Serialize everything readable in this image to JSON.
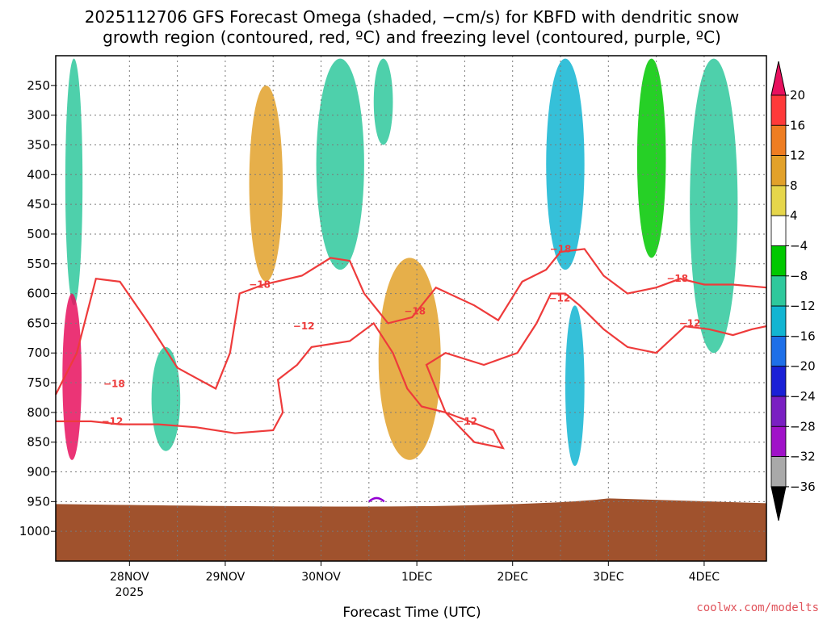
{
  "chart_data": {
    "type": "heatmap",
    "title_line1": "2025112706 GFS Forecast Omega (shaded, −cm/s) for KBFD with dendritic snow",
    "title_line2": "growth region (contoured, red, ºC) and freezing level (contoured, purple, ºC)",
    "xlabel": "Forecast Time (UTC)",
    "ylabel": "",
    "credit": "coolwx.com/modelts",
    "station": "KBFD",
    "model": "GFS",
    "init": "2025112706",
    "yaxis": {
      "ticks": [
        250,
        300,
        350,
        400,
        450,
        500,
        550,
        600,
        650,
        700,
        750,
        800,
        850,
        900,
        950,
        1000
      ],
      "ylim": [
        200,
        1050
      ],
      "units": "hPa"
    },
    "xaxis": {
      "xlim": [
        -0.77,
        6.65
      ],
      "ticks": [
        {
          "value": 0,
          "label": "28NOV",
          "sub": "2025"
        },
        {
          "value": 1,
          "label": "29NOV",
          "sub": ""
        },
        {
          "value": 2,
          "label": "30NOV",
          "sub": ""
        },
        {
          "value": 3,
          "label": "1DEC",
          "sub": ""
        },
        {
          "value": 4,
          "label": "2DEC",
          "sub": ""
        },
        {
          "value": 5,
          "label": "3DEC",
          "sub": ""
        },
        {
          "value": 6,
          "label": "4DEC",
          "sub": ""
        }
      ]
    },
    "colorbar": {
      "labels": [
        "20",
        "16",
        "12",
        "8",
        "4",
        "−4",
        "−8",
        "−12",
        "−16",
        "−20",
        "−24",
        "−28",
        "−32",
        "−36"
      ],
      "levels": [
        20,
        16,
        12,
        8,
        4,
        -4,
        -8,
        -12,
        -16,
        -20,
        -24,
        -28,
        -32,
        -36
      ],
      "colors": [
        "#e8105e",
        "#ff3a3a",
        "#ee7d22",
        "#e2a12a",
        "#e6d64b",
        "#ffffff",
        "#00c800",
        "#2fc89c",
        "#12b5d2",
        "#1e6fe8",
        "#1a20d6",
        "#7a1fc2",
        "#a012c8",
        "#a9a9a9",
        "#000000"
      ]
    },
    "colors": {
      "ground": "#a0522d",
      "dgz_contour": "#ee3b3b",
      "freezing_contour": "#9400d3",
      "grid": "#7a7a7a"
    },
    "contour_labels": [
      {
        "label": "−18",
        "x": -0.16,
        "p": 752
      },
      {
        "label": "−12",
        "x": -0.18,
        "p": 815
      },
      {
        "label": "−18",
        "x": 1.36,
        "p": 585
      },
      {
        "label": "−12",
        "x": 1.82,
        "p": 655
      },
      {
        "label": "−18",
        "x": 2.98,
        "p": 630
      },
      {
        "label": "−12",
        "x": 3.52,
        "p": 815
      },
      {
        "label": "−18",
        "x": 4.5,
        "p": 525
      },
      {
        "label": "−12",
        "x": 4.49,
        "p": 608
      },
      {
        "label": "−18",
        "x": 5.72,
        "p": 575
      },
      {
        "label": "−12",
        "x": 5.85,
        "p": 650
      }
    ],
    "shaded_features": [
      {
        "x": -0.67,
        "x1": -0.49,
        "p0": 205,
        "p1": 620,
        "level": -12,
        "note": "upward column left edge"
      },
      {
        "x": -0.7,
        "x1": -0.5,
        "p0": 600,
        "p1": 880,
        "level": 20,
        "note": "strong subsidence low levels"
      },
      {
        "x": 0.23,
        "x1": 0.53,
        "p0": 690,
        "p1": 865,
        "level": -12,
        "note": "upward cell 28-29NOV"
      },
      {
        "x": 1.25,
        "x1": 1.6,
        "p0": 250,
        "p1": 580,
        "level": 8,
        "note": "subsidence aloft 29NOV"
      },
      {
        "x": 1.95,
        "x1": 2.45,
        "p0": 205,
        "p1": 560,
        "level": -12,
        "note": "upward column 30NOV"
      },
      {
        "x": 2.55,
        "x1": 2.75,
        "p0": 205,
        "p1": 350,
        "level": -12,
        "note": "upward cell late 30NOV"
      },
      {
        "x": 2.6,
        "x1": 3.25,
        "p0": 540,
        "p1": 880,
        "level": 8,
        "note": "subsidence 1DEC"
      },
      {
        "x": 4.35,
        "x1": 4.75,
        "p0": 205,
        "p1": 560,
        "level": -16,
        "note": "upward column 2DEC"
      },
      {
        "x": 4.55,
        "x1": 4.75,
        "p0": 620,
        "p1": 890,
        "level": -16,
        "note": "upward cell low levels 2DEC"
      },
      {
        "x": 5.3,
        "x1": 5.6,
        "p0": 205,
        "p1": 540,
        "level": -8,
        "note": "upward column 3DEC"
      },
      {
        "x": 5.85,
        "x1": 6.35,
        "p0": 205,
        "p1": 700,
        "level": -12,
        "note": "upward column 4DEC"
      }
    ]
  }
}
